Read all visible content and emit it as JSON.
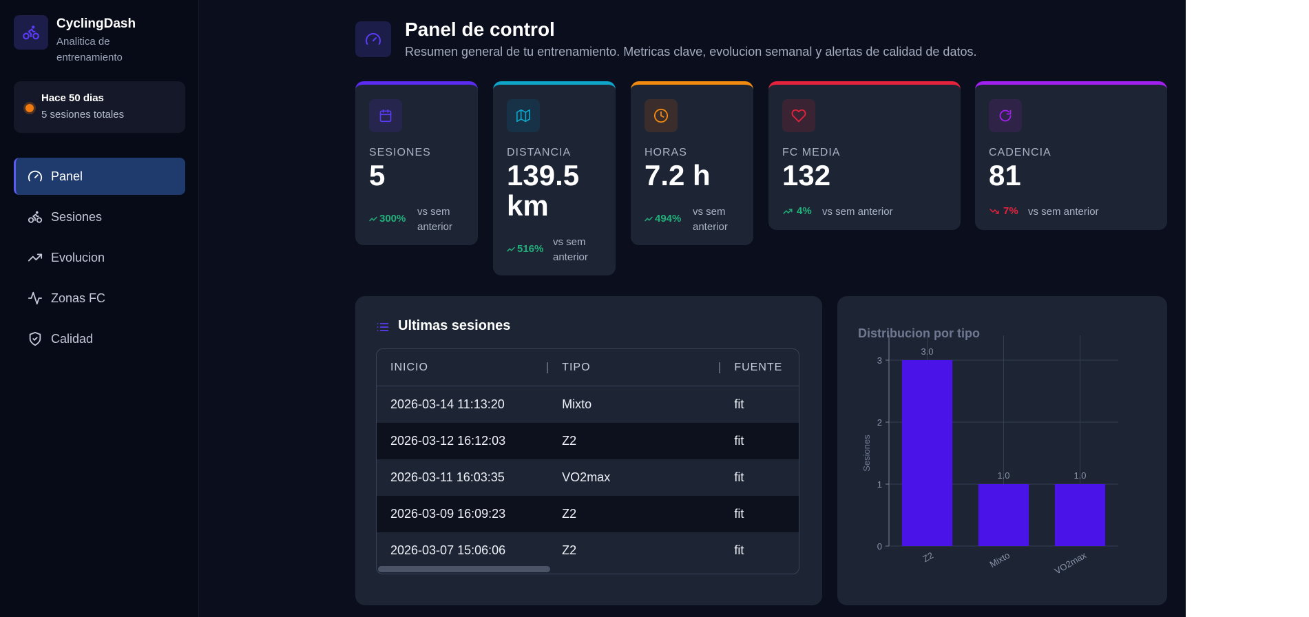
{
  "brand": {
    "name": "CyclingDash",
    "subtitle": "Analitica de entrenamiento"
  },
  "status": {
    "title": "Hace 50 dias",
    "subtitle": "5 sesiones totales",
    "color": "#f07a10"
  },
  "nav": [
    {
      "label": "Panel",
      "icon": "gauge-icon",
      "active": true
    },
    {
      "label": "Sesiones",
      "icon": "bike-icon",
      "active": false
    },
    {
      "label": "Evolucion",
      "icon": "trending-up-icon",
      "active": false
    },
    {
      "label": "Zonas FC",
      "icon": "pulse-icon",
      "active": false
    },
    {
      "label": "Calidad",
      "icon": "shield-check-icon",
      "active": false
    }
  ],
  "header": {
    "title": "Panel de control",
    "subtitle": "Resumen general de tu entrenamiento. Metricas clave, evolucion semanal y alertas de calidad de datos."
  },
  "kpis": [
    {
      "label": "SESIONES",
      "value": "5",
      "delta": "300%",
      "trend": "up",
      "vs": "vs sem anterior",
      "color": "#5b2bf0",
      "icon": "calendar-icon"
    },
    {
      "label": "DISTANCIA",
      "value": "139.5 km",
      "delta": "516%",
      "trend": "up",
      "vs": "vs sem anterior",
      "color": "#0ea5c9",
      "icon": "map-icon"
    },
    {
      "label": "HORAS",
      "value": "7.2 h",
      "delta": "494%",
      "trend": "up",
      "vs": "vs sem anterior",
      "color": "#f08a10",
      "icon": "clock-icon"
    },
    {
      "label": "FC MEDIA",
      "value": "132",
      "delta": "4%",
      "trend": "up",
      "vs": "vs sem anterior",
      "color": "#e5233d",
      "icon": "heart-icon"
    },
    {
      "label": "CADENCIA",
      "value": "81",
      "delta": "7%",
      "trend": "down",
      "vs": "vs sem anterior",
      "color": "#a020f0",
      "icon": "refresh-icon"
    }
  ],
  "sessions": {
    "title": "Ultimas sesiones",
    "columns": [
      "INICIO",
      "TIPO",
      "FUENTE"
    ],
    "rows": [
      [
        "2026-03-14 11:13:20",
        "Mixto",
        "fit"
      ],
      [
        "2026-03-12 16:12:03",
        "Z2",
        "fit"
      ],
      [
        "2026-03-11 16:03:35",
        "VO2max",
        "fit"
      ],
      [
        "2026-03-09 16:09:23",
        "Z2",
        "fit"
      ],
      [
        "2026-03-07 15:06:06",
        "Z2",
        "fit"
      ]
    ]
  },
  "chart_data": {
    "type": "bar",
    "title": "Distribucion por tipo",
    "categories": [
      "Z2",
      "Mixto",
      "VO2max"
    ],
    "values": [
      3,
      1,
      1
    ],
    "data_labels": [
      "3.0",
      "1.0",
      "1.0"
    ],
    "ylabel": "Sesiones",
    "xlabel": "",
    "yticks": [
      "0",
      "1",
      "2",
      "3"
    ],
    "ylim": [
      0,
      3
    ],
    "grid": true,
    "bar_color": "#4a14e8"
  }
}
